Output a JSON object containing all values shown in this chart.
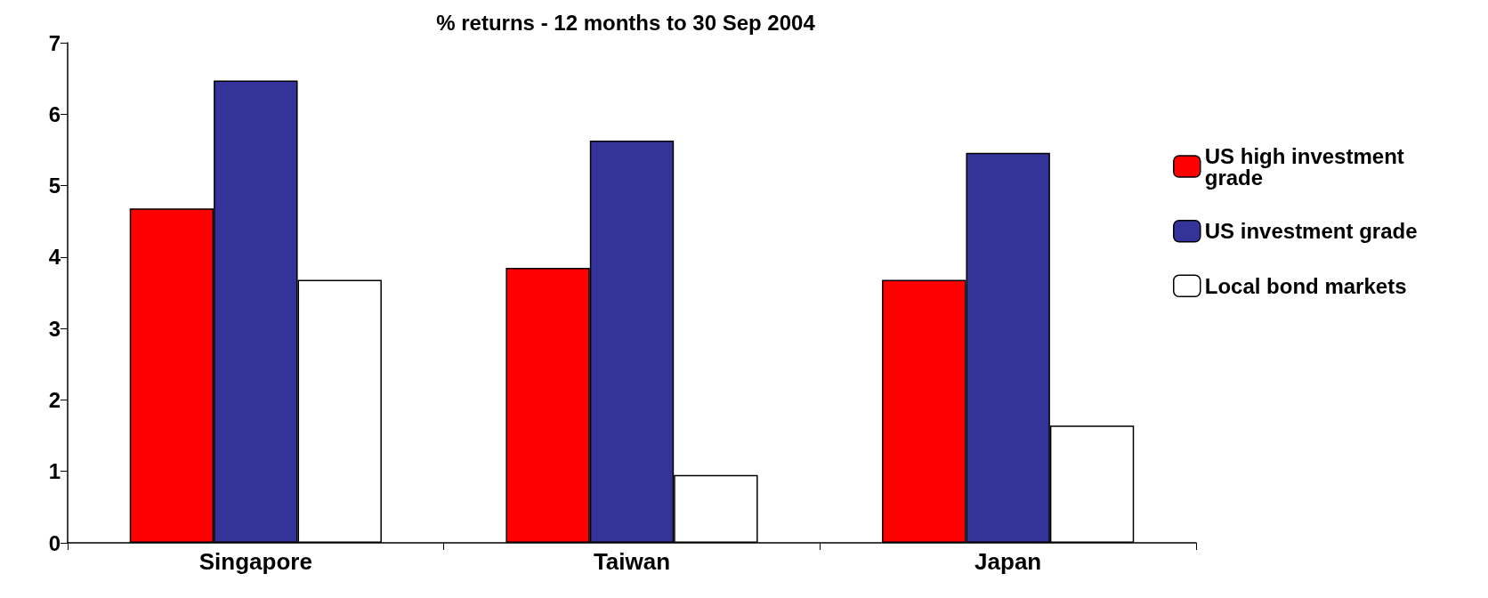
{
  "chart_data": {
    "type": "bar",
    "title": "% returns - 12 months to 30 Sep 2004",
    "categories": [
      "Singapore",
      "Taiwan",
      "Japan"
    ],
    "series": [
      {
        "name": "US high investment grade",
        "color": "#ff0000",
        "values": [
          4.68,
          3.85,
          3.68
        ]
      },
      {
        "name": "US investment grade",
        "color": "#333399",
        "values": [
          6.47,
          5.63,
          5.46
        ]
      },
      {
        "name": "Local bond markets",
        "color": "#ffffff",
        "values": [
          3.68,
          0.95,
          1.64
        ]
      }
    ],
    "ylim": [
      0,
      7
    ],
    "yticks": [
      0,
      1,
      2,
      3,
      4,
      5,
      6,
      7
    ],
    "legend": "right"
  }
}
